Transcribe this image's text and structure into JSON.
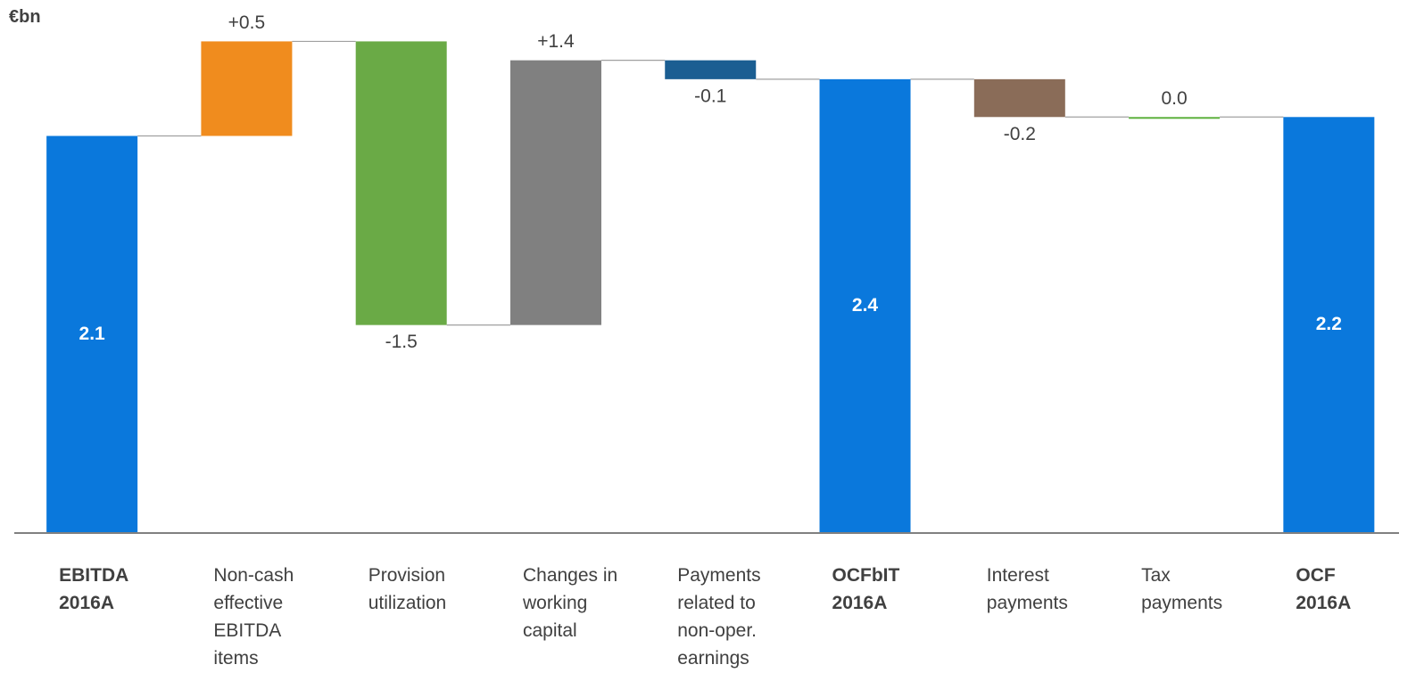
{
  "chart_data": {
    "type": "waterfall",
    "unit_label": "€bn",
    "categories": [
      "EBITDA 2016A",
      "Non-cash effective EBITDA items",
      "Provision utilization",
      "Changes in working capital",
      "Payments related to non-oper. earnings",
      "OCFbIT 2016A",
      "Interest payments",
      "Tax payments",
      "OCF 2016A"
    ],
    "values": [
      2.1,
      0.5,
      -1.5,
      1.4,
      -0.1,
      2.4,
      -0.2,
      0.0,
      2.2
    ],
    "value_labels": [
      "2.1",
      "+0.5",
      "-1.5",
      "+1.4",
      "-0.1",
      "2.4",
      "-0.2",
      "0.0",
      "2.2"
    ],
    "measures": [
      "total",
      "relative",
      "relative",
      "relative",
      "relative",
      "total",
      "relative",
      "relative",
      "total"
    ],
    "colors": [
      "#0a78dc",
      "#f08c1e",
      "#6aaa46",
      "#808080",
      "#1b5e92",
      "#0a78dc",
      "#8a6c58",
      "#5cb03c",
      "#0a78dc"
    ],
    "ylim": [
      0,
      2.8
    ]
  }
}
